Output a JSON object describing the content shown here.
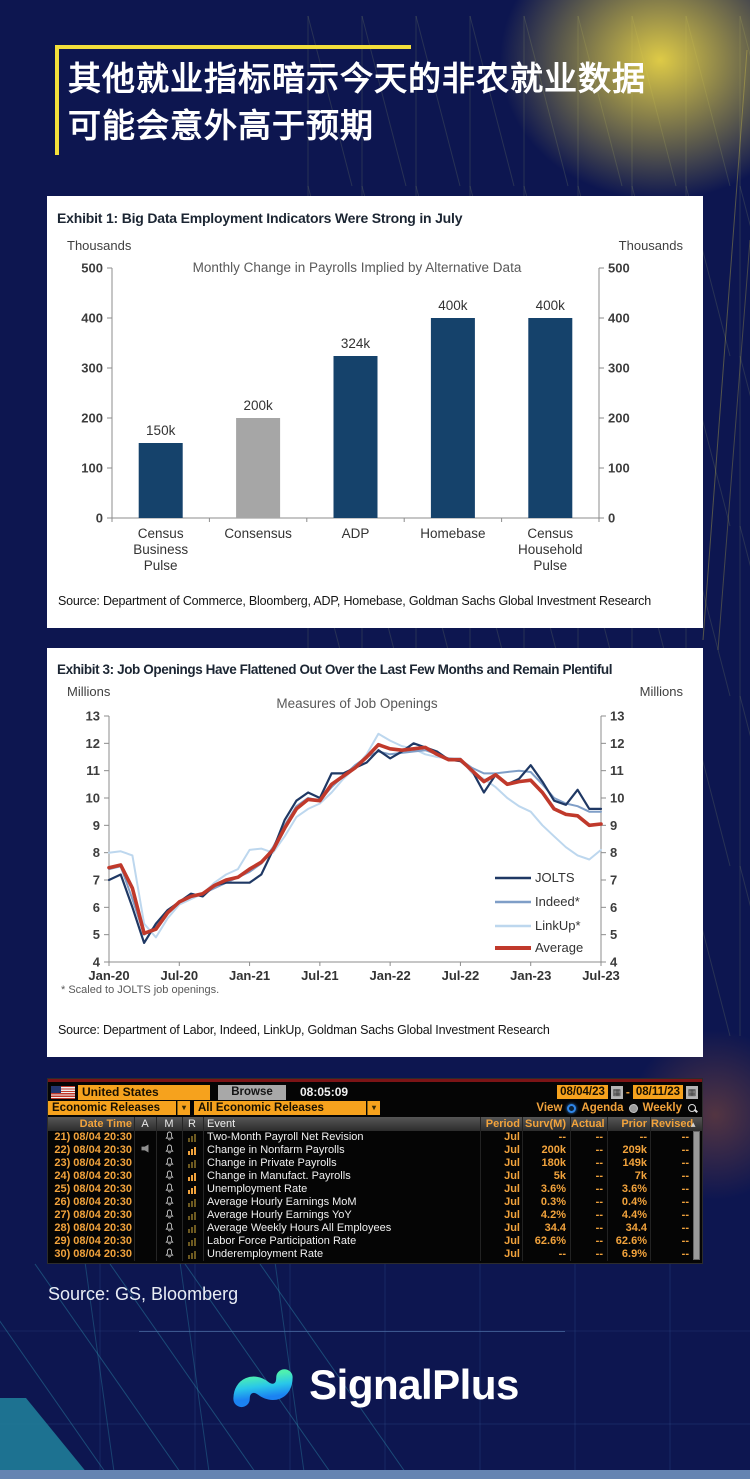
{
  "page": {
    "title_line1": "其他就业指标暗示今天的非农就业数据",
    "title_line2": "可能会意外高于预期",
    "source_note": "Source: GS, Bloomberg",
    "brand": "SignalPlus",
    "colors": {
      "background": "#0d1650",
      "accent_yellow": "#f3df3b",
      "terminal_orange": "#f6a21d",
      "brand_gradient_top": "#4ef0b0",
      "brand_gradient_bottom": "#1b82f2"
    }
  },
  "exhibit1": {
    "title": "Exhibit 1: Big Data Employment Indicators Were Strong in July",
    "axis_unit_left": "Thousands",
    "axis_unit_right": "Thousands",
    "chart_title": "Monthly Change in Payrolls Implied by Alternative Data",
    "source": "Source: Department of Commerce, Bloomberg, ADP, Homebase, Goldman Sachs Global Investment Research"
  },
  "exhibit3": {
    "title": "Exhibit 3: Job Openings Have Flattened Out Over the Last Few Months and Remain Plentiful",
    "axis_unit_left": "Millions",
    "axis_unit_right": "Millions",
    "chart_title": "Measures of Job Openings",
    "footnote": "* Scaled to JOLTS job openings.",
    "source": "Source: Department of Labor, Indeed, LinkUp, Goldman Sachs Global Investment Research"
  },
  "chart_data": [
    {
      "type": "bar",
      "title": "Monthly Change in Payrolls Implied by Alternative Data",
      "ylabel": "Thousands",
      "categories": [
        "Census Business Pulse",
        "Consensus",
        "ADP",
        "Homebase",
        "Census Household Pulse"
      ],
      "category_lines": [
        [
          "Census",
          "Business",
          "Pulse"
        ],
        [
          "Consensus"
        ],
        [
          "ADP"
        ],
        [
          "Homebase"
        ],
        [
          "Census",
          "Household",
          "Pulse"
        ]
      ],
      "values": [
        150,
        200,
        324,
        400,
        400
      ],
      "labels": [
        "150k",
        "200k",
        "324k",
        "400k",
        "400k"
      ],
      "bar_colors": [
        "#15426b",
        "#a6a6a6",
        "#15426b",
        "#15426b",
        "#15426b"
      ],
      "ylim": [
        0,
        500
      ],
      "yticks": [
        0,
        100,
        200,
        300,
        400,
        500
      ]
    },
    {
      "type": "line",
      "title": "Measures of Job Openings",
      "ylabel": "Millions",
      "x_start": "Jan-2020",
      "x_end": "Jul-2023",
      "frequency": "monthly",
      "n_points": 43,
      "x_ticks": [
        "Jan-20",
        "Jul-20",
        "Jan-21",
        "Jul-21",
        "Jan-22",
        "Jul-22",
        "Jan-23",
        "Jul-23"
      ],
      "ylim": [
        4,
        13
      ],
      "legend_position": "bottom-right",
      "series": [
        {
          "name": "JOLTS",
          "color": "#1f3864",
          "width": 2.2,
          "values": [
            7.0,
            7.2,
            6.0,
            4.7,
            5.4,
            5.9,
            6.2,
            6.5,
            6.4,
            6.8,
            6.9,
            6.9,
            6.9,
            7.2,
            8.1,
            9.2,
            9.9,
            10.2,
            10.0,
            10.9,
            10.9,
            11.1,
            11.3,
            11.75,
            11.45,
            11.7,
            12.0,
            11.85,
            11.7,
            11.4,
            11.35,
            11.0,
            10.2,
            10.85,
            10.5,
            10.7,
            11.2,
            10.6,
            9.9,
            9.75,
            10.3,
            9.6,
            9.6
          ]
        },
        {
          "name": "Indeed*",
          "color": "#7f9ec7",
          "width": 2,
          "values": [
            7.4,
            7.5,
            6.3,
            5.0,
            5.3,
            5.8,
            6.2,
            6.4,
            6.5,
            6.7,
            6.9,
            7.1,
            7.3,
            7.6,
            8.2,
            9.0,
            9.7,
            10.0,
            9.9,
            10.4,
            10.8,
            11.2,
            11.5,
            11.7,
            11.6,
            11.65,
            11.7,
            11.75,
            11.6,
            11.45,
            11.4,
            11.1,
            10.9,
            10.9,
            10.95,
            11.0,
            10.95,
            10.5,
            10.0,
            9.8,
            9.7,
            9.5,
            9.5
          ]
        },
        {
          "name": "LinkUp*",
          "color": "#bdd7ee",
          "width": 2,
          "values": [
            8.0,
            8.05,
            7.9,
            5.4,
            4.9,
            5.6,
            6.1,
            6.3,
            6.5,
            6.9,
            7.2,
            7.4,
            8.1,
            8.15,
            8.0,
            8.6,
            9.3,
            9.6,
            9.8,
            10.2,
            10.7,
            11.1,
            11.6,
            12.35,
            12.1,
            11.9,
            11.8,
            11.6,
            11.5,
            11.45,
            11.45,
            10.9,
            10.7,
            10.4,
            10.0,
            9.7,
            9.5,
            9.0,
            8.6,
            8.2,
            7.9,
            7.75,
            8.1
          ]
        },
        {
          "name": "Average",
          "color": "#c0392b",
          "width": 3.6,
          "values": [
            7.45,
            7.55,
            6.7,
            5.05,
            5.2,
            5.8,
            6.2,
            6.4,
            6.5,
            6.8,
            7.0,
            7.1,
            7.4,
            7.65,
            8.1,
            8.9,
            9.6,
            9.95,
            9.9,
            10.5,
            10.8,
            11.1,
            11.5,
            11.95,
            11.8,
            11.75,
            11.8,
            11.85,
            11.6,
            11.4,
            11.4,
            11.0,
            10.6,
            10.85,
            10.5,
            10.6,
            10.65,
            10.2,
            9.6,
            9.4,
            9.35,
            9.0,
            9.05
          ]
        }
      ]
    }
  ],
  "terminal": {
    "region": "United States",
    "browse_label": "Browse",
    "time": "08:05:09",
    "date_from": "08/04/23",
    "date_to": "08/11/23",
    "filter1": "Economic Releases",
    "filter2": "All Economic Releases",
    "view_label": "View",
    "agenda_label": "Agenda",
    "weekly_label": "Weekly",
    "icons": {
      "dropdown": "▾",
      "sort": "▴",
      "calendar": "▦",
      "dash": "-"
    },
    "columns": [
      "Date Time",
      "A",
      "M",
      "R",
      "Event",
      "Period",
      "Surv(M)",
      "Actual",
      "Prior",
      "Revised"
    ],
    "rows": [
      {
        "num": "21)",
        "datetime": "08/04 20:30",
        "speaker": false,
        "chart_bright": false,
        "event": "Two-Month Payroll Net Revision",
        "period": "Jul",
        "surv": "--",
        "actual": "--",
        "prior": "--",
        "revised": "--"
      },
      {
        "num": "22)",
        "datetime": "08/04 20:30",
        "speaker": true,
        "chart_bright": true,
        "event": "Change in Nonfarm Payrolls",
        "period": "Jul",
        "surv": "200k",
        "actual": "--",
        "prior": "209k",
        "revised": "--"
      },
      {
        "num": "23)",
        "datetime": "08/04 20:30",
        "speaker": false,
        "chart_bright": false,
        "event": "Change in Private Payrolls",
        "period": "Jul",
        "surv": "180k",
        "actual": "--",
        "prior": "149k",
        "revised": "--"
      },
      {
        "num": "24)",
        "datetime": "08/04 20:30",
        "speaker": false,
        "chart_bright": true,
        "event": "Change in Manufact. Payrolls",
        "period": "Jul",
        "surv": "5k",
        "actual": "--",
        "prior": "7k",
        "revised": "--"
      },
      {
        "num": "25)",
        "datetime": "08/04 20:30",
        "speaker": false,
        "chart_bright": true,
        "event": "Unemployment Rate",
        "period": "Jul",
        "surv": "3.6%",
        "actual": "--",
        "prior": "3.6%",
        "revised": "--"
      },
      {
        "num": "26)",
        "datetime": "08/04 20:30",
        "speaker": false,
        "chart_bright": false,
        "event": "Average Hourly Earnings MoM",
        "period": "Jul",
        "surv": "0.3%",
        "actual": "--",
        "prior": "0.4%",
        "revised": "--"
      },
      {
        "num": "27)",
        "datetime": "08/04 20:30",
        "speaker": false,
        "chart_bright": false,
        "event": "Average Hourly Earnings YoY",
        "period": "Jul",
        "surv": "4.2%",
        "actual": "--",
        "prior": "4.4%",
        "revised": "--"
      },
      {
        "num": "28)",
        "datetime": "08/04 20:30",
        "speaker": false,
        "chart_bright": false,
        "event": "Average Weekly Hours All Employees",
        "period": "Jul",
        "surv": "34.4",
        "actual": "--",
        "prior": "34.4",
        "revised": "--"
      },
      {
        "num": "29)",
        "datetime": "08/04 20:30",
        "speaker": false,
        "chart_bright": false,
        "event": "Labor Force Participation Rate",
        "period": "Jul",
        "surv": "62.6%",
        "actual": "--",
        "prior": "62.6%",
        "revised": "--"
      },
      {
        "num": "30)",
        "datetime": "08/04 20:30",
        "speaker": false,
        "chart_bright": false,
        "event": "Underemployment Rate",
        "period": "Jul",
        "surv": "--",
        "actual": "--",
        "prior": "6.9%",
        "revised": "--"
      }
    ]
  }
}
